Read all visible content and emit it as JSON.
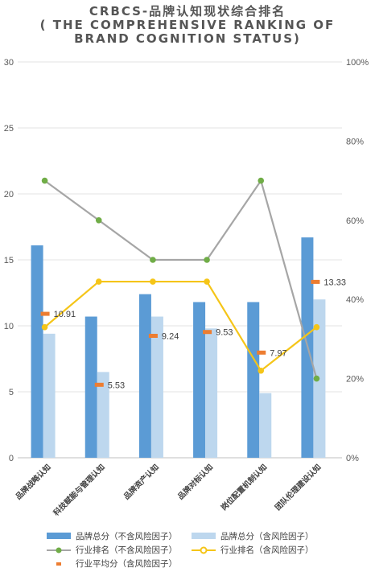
{
  "title": {
    "line1": "CRBCS-品牌认知现状综合排名",
    "line2": "( THE COMPREHENSIVE RANKING OF",
    "line3": "BRAND COGNITION STATUS)"
  },
  "chart_data": {
    "type": "bar",
    "categories": [
      "品牌战略认知",
      "科技赋能与管理认知",
      "品牌资产认知",
      "品牌对标认知",
      "岗位配置机制认知",
      "团队伦理建设认知"
    ],
    "series": [
      {
        "name": "品牌总分（不含风险因子）",
        "kind": "bar",
        "axis": "left",
        "color": "#5B9BD5",
        "values": [
          16.1,
          10.7,
          12.4,
          11.8,
          11.8,
          16.7
        ]
      },
      {
        "name": "品牌总分（含风险因子）",
        "kind": "bar",
        "axis": "left",
        "color": "#BDD7EE",
        "values": [
          9.4,
          6.5,
          10.7,
          9.8,
          4.9,
          12.0
        ]
      },
      {
        "name": "行业排名（不含风险因子）",
        "kind": "line",
        "axis": "right",
        "color": "#A6A6A6",
        "marker": "#70AD47",
        "values": [
          0.7,
          0.6,
          0.5,
          0.5,
          0.7,
          0.2
        ]
      },
      {
        "name": "行业排名（含风险因子）",
        "kind": "line",
        "axis": "right",
        "color": "#F5C518",
        "marker": "#F5C518",
        "values": [
          0.33,
          0.445,
          0.445,
          0.445,
          0.22,
          0.33
        ]
      },
      {
        "name": "行业平均分（含风险因子）",
        "kind": "marker",
        "axis": "left",
        "color": "#ED7D31",
        "values": [
          10.91,
          5.53,
          9.24,
          9.53,
          7.97,
          13.33
        ]
      }
    ],
    "data_labels": [
      "10.91",
      "5.53",
      "9.24",
      "9.53",
      "7.97",
      "13.33"
    ],
    "y_left": {
      "min": 0,
      "max": 30,
      "ticks": [
        "0",
        "5",
        "10",
        "15",
        "20",
        "25",
        "30"
      ]
    },
    "y_right": {
      "min": 0,
      "max": 1,
      "ticks": [
        "0%",
        "20%",
        "40%",
        "60%",
        "80%",
        "100%"
      ]
    },
    "grid": true,
    "legend_position": "bottom"
  },
  "legend": {
    "item1": "品牌总分（不含风险因子）",
    "item2": "品牌总分（含风险因子）",
    "item3": "行业排名（不含风险因子）",
    "item4": "行业排名（含风险因子）",
    "item5": "行业平均分（含风险因子）"
  }
}
